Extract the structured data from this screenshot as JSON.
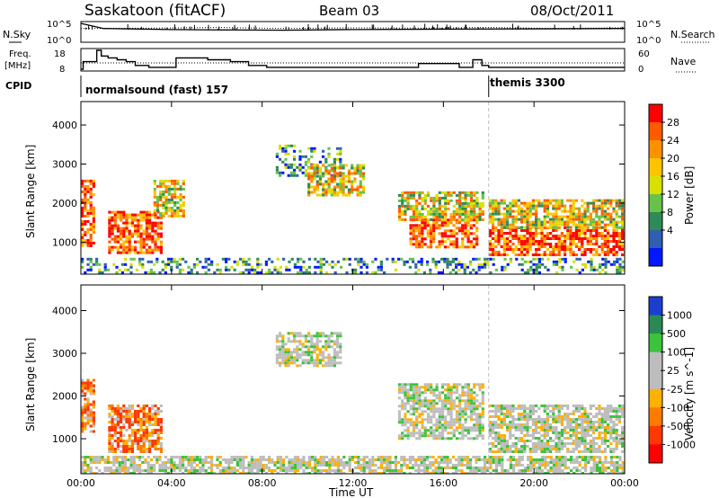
{
  "header": {
    "station": "Saskatoon (fitACF)",
    "beam": "Beam 03",
    "date": "08/Oct/2011"
  },
  "top_panels": {
    "noise": {
      "left_label": "N.Sky",
      "left_ticks": [
        "10^5",
        "10^0"
      ],
      "right_label": "N.Search",
      "right_ticks": [
        "10^5",
        "10^0"
      ]
    },
    "freq": {
      "left_label_1": "Freq.",
      "left_label_2": "[MHz]",
      "left_ticks": [
        "18",
        "8"
      ],
      "right_label": "Nave",
      "right_ticks": [
        "60",
        "0"
      ]
    },
    "cpid": {
      "label": "CPID",
      "modes": [
        {
          "name": "normalsound (fast) 157",
          "start_hour": 0.0
        },
        {
          "name": "themis 3300",
          "start_hour": 18.0
        }
      ]
    }
  },
  "chart_data": [
    {
      "type": "heatmap",
      "name": "power",
      "ylabel": "Slant Range [km]",
      "ylim": [
        180,
        4600
      ],
      "yticks": [
        "1000",
        "2000",
        "3000",
        "4000"
      ],
      "xlim_hours": [
        0,
        24
      ],
      "colorbar": {
        "label": "Power [dB]",
        "labels": [
          "28",
          "24",
          "20",
          "16",
          "12",
          "8",
          "4"
        ],
        "colors": [
          "#ff0000",
          "#ff5a00",
          "#ff9000",
          "#ffc400",
          "#d8e000",
          "#66c24a",
          "#2f8a57",
          "#2f5fb0",
          "#0018ff"
        ]
      },
      "echo_regions": [
        {
          "t": [
            0.0,
            0.6
          ],
          "r": [
            900,
            2600
          ],
          "level": "high"
        },
        {
          "t": [
            1.2,
            3.6
          ],
          "r": [
            750,
            1800
          ],
          "level": "high"
        },
        {
          "t": [
            3.2,
            4.5
          ],
          "r": [
            1700,
            2600
          ],
          "level": "mixed"
        },
        {
          "t": [
            8.6,
            11.5
          ],
          "r": [
            2700,
            3500
          ],
          "level": "low"
        },
        {
          "t": [
            10.0,
            12.5
          ],
          "r": [
            2200,
            3000
          ],
          "level": "mixed"
        },
        {
          "t": [
            14.5,
            17.5
          ],
          "r": [
            900,
            1600
          ],
          "level": "high"
        },
        {
          "t": [
            14.0,
            17.8
          ],
          "r": [
            1600,
            2300
          ],
          "level": "mixed"
        },
        {
          "t": [
            18.0,
            24.0
          ],
          "r": [
            700,
            1400
          ],
          "level": "high"
        },
        {
          "t": [
            18.0,
            24.0
          ],
          "r": [
            1400,
            2100
          ],
          "level": "mixed"
        },
        {
          "t": [
            0.0,
            24.0
          ],
          "r": [
            180,
            600
          ],
          "level": "low"
        }
      ]
    },
    {
      "type": "heatmap",
      "name": "velocity",
      "xlabel": "Time UT",
      "ylabel": "Slant Range [km]",
      "ylim": [
        180,
        4600
      ],
      "yticks": [
        "1000",
        "2000",
        "3000",
        "4000"
      ],
      "xlim_hours": [
        0,
        24
      ],
      "xticks": [
        "00:00",
        "04:00",
        "08:00",
        "12:00",
        "16:00",
        "20:00",
        "00:00"
      ],
      "colorbar": {
        "label": "Velocity [m s^-1]",
        "labels": [
          "1000",
          "500",
          "100",
          "25",
          "-25",
          "-100",
          "-500",
          "-1000"
        ],
        "colors": [
          "#1a3fd0",
          "#2a8a55",
          "#3cc23c",
          "#bdbdbd",
          "#bdbdbd",
          "#ffb000",
          "#ff7a00",
          "#ff3800",
          "#ff0000"
        ]
      },
      "echo_regions": [
        {
          "t": [
            0.0,
            0.6
          ],
          "r": [
            1200,
            2400
          ],
          "level": "negative"
        },
        {
          "t": [
            1.2,
            3.6
          ],
          "r": [
            700,
            1800
          ],
          "level": "negative"
        },
        {
          "t": [
            8.6,
            11.5
          ],
          "r": [
            2700,
            3500
          ],
          "level": "near-zero"
        },
        {
          "t": [
            14.0,
            17.8
          ],
          "r": [
            1000,
            2300
          ],
          "level": "near-zero"
        },
        {
          "t": [
            18.0,
            24.0
          ],
          "r": [
            700,
            1800
          ],
          "level": "near-zero"
        },
        {
          "t": [
            0.0,
            24.0
          ],
          "r": [
            180,
            600
          ],
          "level": "near-zero"
        }
      ]
    }
  ],
  "noise_sky": {
    "x": [
      0,
      1,
      2,
      4,
      6,
      9,
      12,
      16,
      20,
      24
    ],
    "y": [
      5.0,
      3.5,
      3.4,
      3.2,
      3.1,
      3.0,
      3.2,
      3.3,
      3.4,
      3.5
    ]
  },
  "noise_search": {
    "x": [
      0,
      3,
      6,
      9,
      12,
      15,
      18,
      21,
      24
    ],
    "y": [
      3.5,
      3.6,
      3.8,
      3.5,
      3.7,
      3.6,
      3.8,
      3.5,
      3.7
    ]
  },
  "freq_line": {
    "x": [
      0,
      0.1,
      0.7,
      0.9,
      1.2,
      1.6,
      2.0,
      2.4,
      3.0,
      3.8,
      4.2,
      5.6,
      6.6,
      7.4,
      8.2,
      14.4,
      14.9,
      16.7,
      17.3,
      17.7,
      18.0,
      24.0
    ],
    "y": [
      8,
      12,
      18,
      15,
      14,
      13,
      12,
      10,
      9,
      9,
      14,
      13,
      12,
      10,
      9,
      9,
      11,
      9,
      13,
      10,
      9,
      9
    ]
  },
  "nave_dotted": {
    "level": 20
  }
}
